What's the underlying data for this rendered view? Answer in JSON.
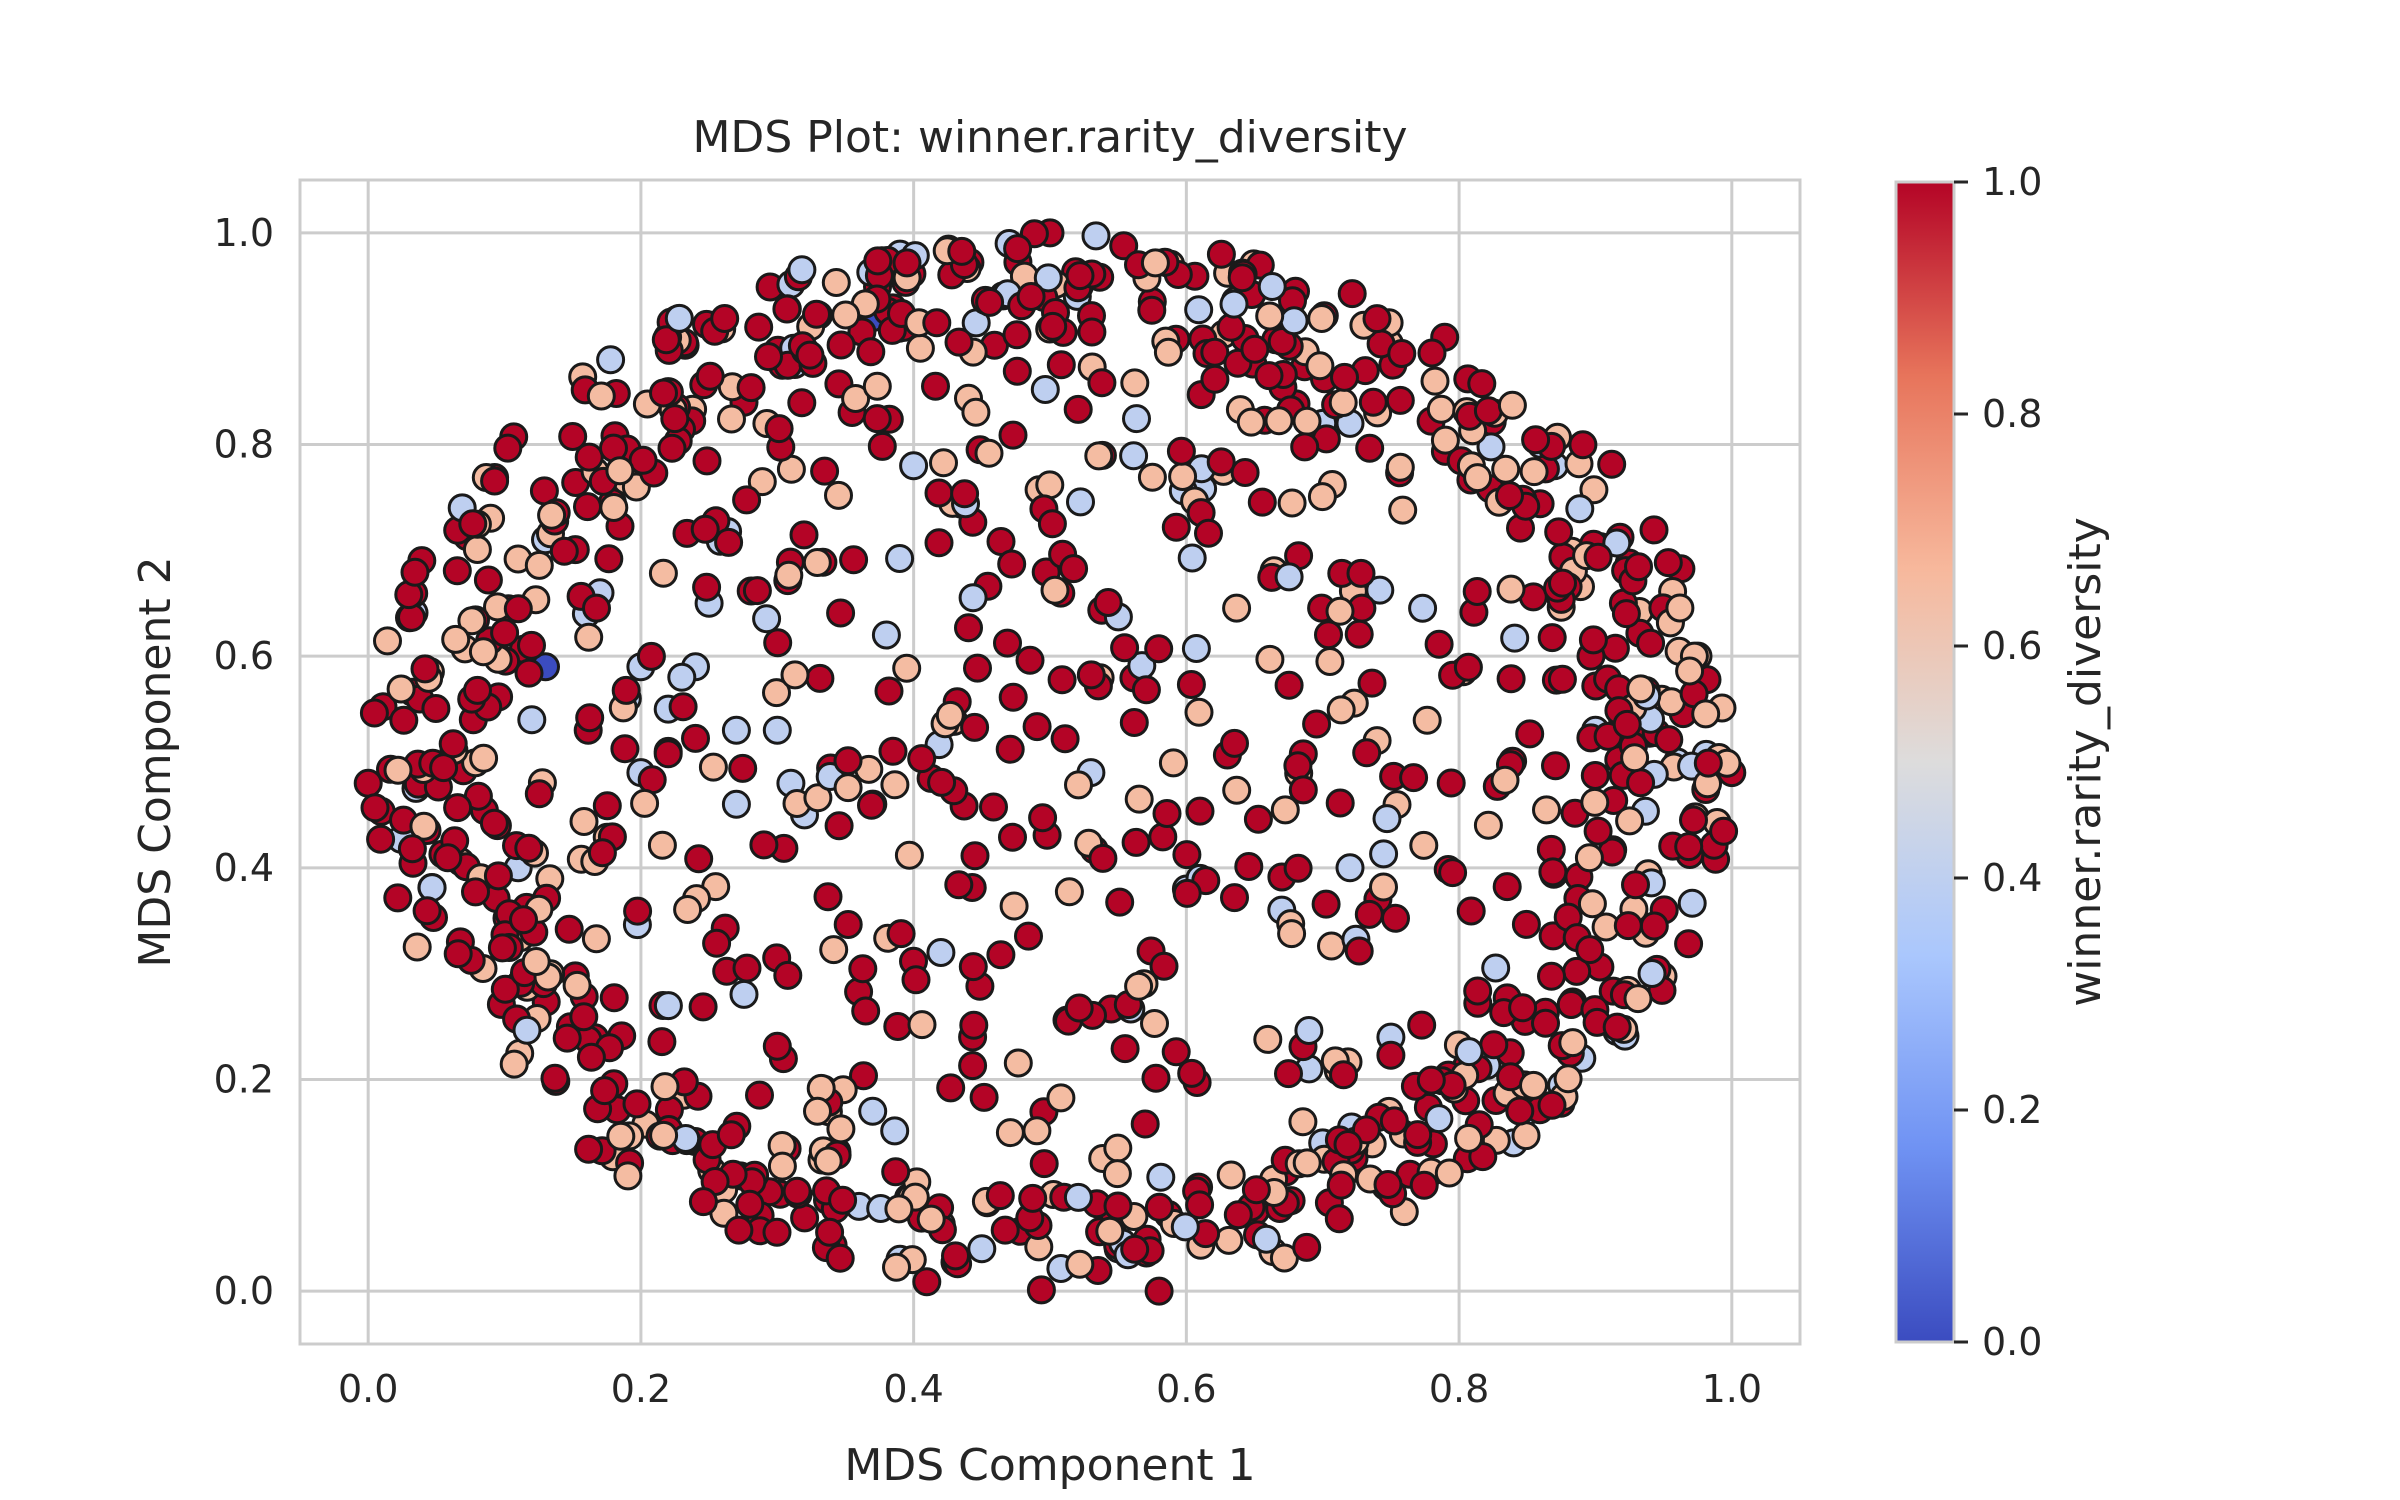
{
  "chart_data": {
    "type": "scatter",
    "title": "MDS Plot: winner.rarity_diversity",
    "xlabel": "MDS Component 1",
    "ylabel": "MDS Component 2",
    "xlim": [
      -0.05,
      1.05
    ],
    "ylim": [
      -0.05,
      1.05
    ],
    "xticks": [
      "0.0",
      "0.2",
      "0.4",
      "0.6",
      "0.8",
      "1.0"
    ],
    "yticks": [
      "0.0",
      "0.2",
      "0.4",
      "0.6",
      "0.8",
      "1.0"
    ],
    "grid": true,
    "colormap": "coolwarm",
    "colorbar": {
      "label": "winner.rarity_diversity",
      "range": [
        0.0,
        1.0
      ],
      "ticks": [
        "0.0",
        "0.2",
        "0.4",
        "0.6",
        "0.8",
        "1.0"
      ],
      "colors": [
        "#3b4cc0",
        "#6f92f3",
        "#aac7fd",
        "#dddcdc",
        "#f7b89c",
        "#e7745b",
        "#b40426"
      ]
    },
    "point_count": 1200,
    "marker_edge_color": "#1a1a1a",
    "points": [
      [
        0.0,
        0.48,
        1.0
      ],
      [
        0.5,
        1.0,
        1.0
      ],
      [
        0.58,
        0.0,
        1.0
      ],
      [
        1.0,
        0.49,
        1.0
      ],
      [
        0.37,
        0.92,
        0.0
      ],
      [
        0.13,
        0.59,
        0.0
      ],
      [
        0.39,
        0.98,
        0.4
      ],
      [
        0.47,
        0.99,
        0.4
      ],
      [
        0.52,
        0.94,
        0.4
      ],
      [
        0.13,
        0.71,
        0.4
      ],
      [
        0.22,
        0.85,
        0.4
      ],
      [
        0.25,
        0.72,
        0.4
      ],
      [
        0.25,
        0.65,
        0.4
      ],
      [
        0.16,
        0.64,
        0.4
      ],
      [
        0.17,
        0.66,
        0.4
      ],
      [
        0.11,
        0.4,
        0.4
      ],
      [
        0.12,
        0.54,
        0.4
      ],
      [
        0.19,
        0.56,
        0.4
      ],
      [
        0.22,
        0.55,
        0.4
      ],
      [
        0.24,
        0.59,
        0.4
      ],
      [
        0.27,
        0.46,
        0.4
      ],
      [
        0.31,
        0.48,
        0.4
      ],
      [
        0.32,
        0.45,
        0.4
      ],
      [
        0.3,
        0.53,
        0.4
      ],
      [
        0.27,
        0.53,
        0.4
      ],
      [
        0.53,
        0.49,
        0.4
      ],
      [
        0.42,
        0.32,
        0.4
      ],
      [
        0.6,
        0.38,
        0.4
      ],
      [
        0.61,
        0.39,
        0.4
      ],
      [
        0.67,
        0.36,
        0.4
      ],
      [
        0.72,
        0.4,
        0.4
      ],
      [
        0.69,
        0.21,
        0.4
      ],
      [
        0.7,
        0.14,
        0.4
      ],
      [
        0.75,
        0.24,
        0.4
      ],
      [
        0.36,
        0.08,
        0.4
      ],
      [
        0.45,
        0.04,
        0.4
      ],
      [
        0.39,
        0.03,
        0.4
      ],
      [
        0.37,
        0.17,
        0.4
      ],
      [
        0.55,
        0.04,
        0.4
      ],
      [
        0.7,
        0.82,
        0.4
      ],
      [
        0.72,
        0.82,
        0.4
      ],
      [
        0.86,
        0.8,
        0.4
      ],
      [
        0.87,
        0.78,
        0.4
      ],
      [
        0.9,
        0.53,
        0.4
      ],
      [
        0.92,
        0.54,
        0.4
      ],
      [
        0.96,
        0.5,
        0.4
      ],
      [
        0.89,
        0.22,
        0.4
      ],
      [
        0.84,
        0.14,
        0.4
      ],
      [
        0.85,
        0.17,
        0.4
      ],
      [
        0.38,
        0.62,
        0.4
      ],
      [
        0.2,
        0.59,
        0.4
      ],
      [
        0.23,
        0.58,
        0.4
      ],
      [
        0.22,
        0.51,
        0.4
      ],
      [
        0.4,
        0.78,
        0.4
      ],
      [
        0.2,
        0.49,
        0.4
      ]
    ]
  }
}
